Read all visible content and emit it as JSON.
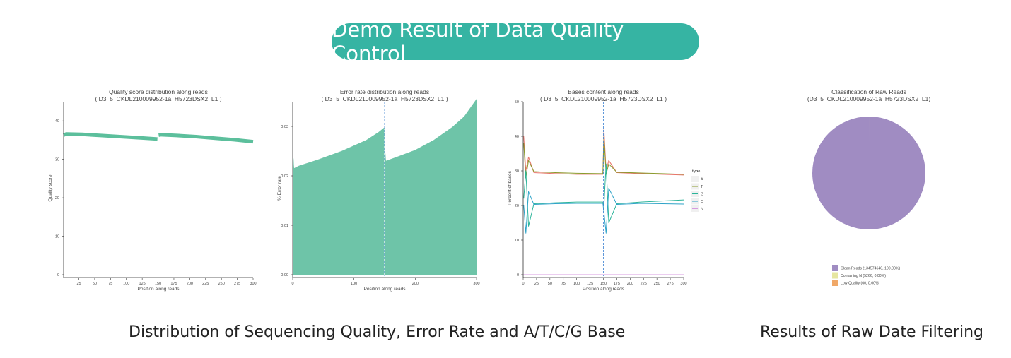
{
  "banner": {
    "title": "Demo Result of Data Quality Control",
    "color": "#36b4a3"
  },
  "captions": {
    "left": "Distribution of Sequencing Quality, Error Rate and A/T/C/G Base",
    "right": "Results of Raw Date Filtering"
  },
  "chart_data": [
    {
      "type": "line",
      "title": "Quality score distribution along reads",
      "subtitle": "( D3_5_CKDL210009952-1a_H5723DSX2_L1 )",
      "xlabel": "Position along reads",
      "ylabel": "Quality score",
      "xlim": [
        1,
        300
      ],
      "ylim": [
        0,
        45
      ],
      "xticks": [
        25,
        50,
        75,
        100,
        125,
        150,
        175,
        200,
        225,
        250,
        275,
        300
      ],
      "yticks": [
        0,
        10,
        20,
        30,
        40
      ],
      "divider_x": 150,
      "color": "#5cbf9c",
      "series": [
        {
          "x": [
            1,
            5,
            30,
            60,
            90,
            120,
            149
          ],
          "y": [
            36.3,
            36.6,
            36.5,
            36.2,
            35.9,
            35.6,
            35.3
          ]
        },
        {
          "x": [
            151,
            155,
            180,
            210,
            240,
            270,
            300
          ],
          "y": [
            36.3,
            36.4,
            36.2,
            35.9,
            35.5,
            35.1,
            34.6
          ]
        }
      ]
    },
    {
      "type": "area",
      "title": "Error rate distribution along reads",
      "subtitle": "( D3_5_CKDL210009952-1a_H5723DSX2_L1 )",
      "xlabel": "Position along reads",
      "ylabel": "% Error rate",
      "xlim": [
        0,
        300
      ],
      "ylim": [
        0,
        0.035
      ],
      "xticks": [
        0,
        100,
        200,
        300
      ],
      "yticks": [
        0.0,
        0.01,
        0.02,
        0.03
      ],
      "divider_x": 150,
      "color": "#6ec4a8",
      "series": [
        {
          "x": [
            1,
            2,
            10,
            40,
            80,
            120,
            140,
            149
          ],
          "y": [
            0.0235,
            0.0215,
            0.022,
            0.0232,
            0.025,
            0.0272,
            0.0288,
            0.0297
          ]
        },
        {
          "x": [
            151,
            152,
            170,
            200,
            230,
            260,
            280,
            300
          ],
          "y": [
            0.0245,
            0.023,
            0.0238,
            0.0252,
            0.0272,
            0.0298,
            0.032,
            0.0355
          ]
        }
      ]
    },
    {
      "type": "line",
      "title": "Bases content along reads",
      "subtitle": "( D3_5_CKDL210009952-1a_H5723DSX2_L1 )",
      "xlabel": "Position along reads",
      "ylabel": "Percent of bases",
      "xlim": [
        0,
        300
      ],
      "ylim": [
        0,
        50
      ],
      "xticks": [
        0,
        25,
        50,
        75,
        100,
        125,
        150,
        175,
        200,
        225,
        250,
        275,
        300
      ],
      "yticks": [
        0,
        10,
        20,
        30,
        40,
        50
      ],
      "divider_x": 150,
      "legend": {
        "title": "type",
        "position": "right"
      },
      "series": [
        {
          "name": "A",
          "color": "#e8746a",
          "x": [
            1,
            5,
            10,
            20,
            60,
            100,
            149,
            151,
            155,
            160,
            175,
            220,
            260,
            300
          ],
          "y": [
            40,
            30,
            34,
            29.5,
            29.2,
            29.0,
            29.0,
            42,
            30,
            33,
            29.5,
            29.2,
            29.0,
            28.8
          ]
        },
        {
          "name": "T",
          "color": "#8a9a2c",
          "x": [
            1,
            5,
            10,
            20,
            60,
            100,
            149,
            151,
            155,
            160,
            175,
            220,
            260,
            300
          ],
          "y": [
            38,
            28,
            33,
            29.8,
            29.5,
            29.3,
            29.2,
            40,
            29,
            32,
            29.6,
            29.4,
            29.2,
            29.0
          ]
        },
        {
          "name": "G",
          "color": "#2bb49a",
          "x": [
            1,
            5,
            10,
            20,
            60,
            100,
            149,
            151,
            155,
            160,
            175,
            220,
            260,
            300
          ],
          "y": [
            22,
            30,
            14,
            20.5,
            20.8,
            21.0,
            21.0,
            20,
            32,
            15,
            20.5,
            21.0,
            21.3,
            21.6
          ]
        },
        {
          "name": "C",
          "color": "#2ea3c8",
          "x": [
            1,
            5,
            10,
            20,
            60,
            100,
            149,
            151,
            155,
            160,
            175,
            220,
            260,
            300
          ],
          "y": [
            20,
            12,
            24,
            20.3,
            20.5,
            20.6,
            20.6,
            18,
            12,
            25,
            20.3,
            20.6,
            20.5,
            20.4
          ]
        },
        {
          "name": "N",
          "color": "#d79be0",
          "x": [
            0,
            300
          ],
          "y": [
            0,
            0
          ]
        }
      ]
    },
    {
      "type": "pie",
      "title": "Classification of Raw Reads",
      "subtitle": "(D3_5_CKDL210009952-1a_H5723DSX2_L1)",
      "legend": {
        "position": "bottom"
      },
      "slices": [
        {
          "label": "Clean Reads (134574640, 100.00%)",
          "value": 134574640,
          "color": "#a08cc2"
        },
        {
          "label": "Containing N (5266, 0.00%)",
          "value": 5266,
          "color": "#e6e6a0"
        },
        {
          "label": "Low Quality (60, 0.00%)",
          "value": 60,
          "color": "#f0a868"
        }
      ]
    }
  ]
}
